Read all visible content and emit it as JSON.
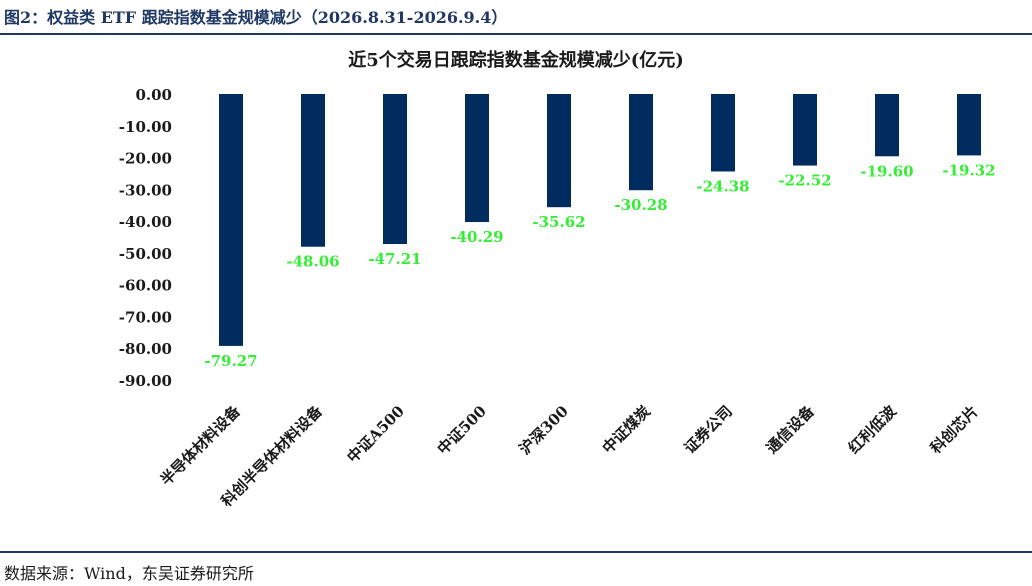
{
  "figure": {
    "title": "图2：权益类 ETF 跟踪指数基金规模减少（2026.8.31-2026.9.4）",
    "source": "数据来源：Wind，东吴证券研究所"
  },
  "colors": {
    "bar": "#002c5f",
    "data_label": "#33ee33",
    "frame": "#1f3864"
  },
  "chart_data": {
    "type": "bar",
    "title": "近5个交易日跟踪指数基金规模减少(亿元)",
    "xlabel": "",
    "ylabel": "",
    "ylim": [
      -90,
      0
    ],
    "yticks": [
      "0.00",
      "-10.00",
      "-20.00",
      "-30.00",
      "-40.00",
      "-50.00",
      "-60.00",
      "-70.00",
      "-80.00",
      "-90.00"
    ],
    "grid": false,
    "legend": "none",
    "categories": [
      "半导体材料设备",
      "科创半导体材料设备",
      "中证A500",
      "中证500",
      "沪深300",
      "中证煤炭",
      "证券公司",
      "通信设备",
      "红利低波",
      "科创芯片"
    ],
    "values": [
      -79.27,
      -48.06,
      -47.21,
      -40.29,
      -35.62,
      -30.28,
      -24.38,
      -22.52,
      -19.6,
      -19.32
    ],
    "data_labels": [
      "-79.27",
      "-48.06",
      "-47.21",
      "-40.29",
      "-35.62",
      "-30.28",
      "-24.38",
      "-22.52",
      "-19.60",
      "-19.32"
    ]
  }
}
